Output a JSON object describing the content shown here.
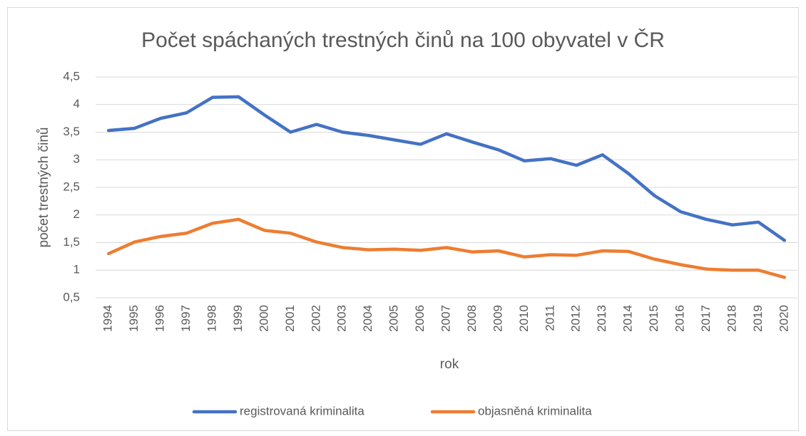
{
  "chart_data": {
    "type": "line",
    "title": "Počet spáchaných trestných činů na 100 obyvatel v ČR",
    "xlabel": "rok",
    "ylabel": "počet trestných činů",
    "categories": [
      "1994",
      "1995",
      "1996",
      "1997",
      "1998",
      "1999",
      "2000",
      "2001",
      "2002",
      "2003",
      "2004",
      "2005",
      "2006",
      "2007",
      "2008",
      "2009",
      "2010",
      "2011",
      "2012",
      "2013",
      "2014",
      "2015",
      "2016",
      "2017",
      "2018",
      "2019",
      "2020"
    ],
    "series": [
      {
        "name": "registrovaná kriminalita",
        "color": "#4472c4",
        "values": [
          3.53,
          3.57,
          3.75,
          3.85,
          4.13,
          4.14,
          3.81,
          3.5,
          3.64,
          3.5,
          3.44,
          3.36,
          3.28,
          3.47,
          3.32,
          3.18,
          2.98,
          3.02,
          2.9,
          3.09,
          2.75,
          2.35,
          2.06,
          1.92,
          1.82,
          1.87,
          1.54
        ]
      },
      {
        "name": "objasněná kriminalita",
        "color": "#ed7d31",
        "values": [
          1.3,
          1.51,
          1.61,
          1.67,
          1.85,
          1.92,
          1.72,
          1.67,
          1.51,
          1.41,
          1.37,
          1.38,
          1.36,
          1.41,
          1.33,
          1.35,
          1.24,
          1.28,
          1.27,
          1.35,
          1.34,
          1.2,
          1.1,
          1.02,
          1.0,
          1.0,
          0.87
        ]
      }
    ],
    "ylim": [
      0.5,
      4.5
    ],
    "yticks": [
      {
        "value": 0.5,
        "label": "0,5"
      },
      1,
      {
        "value": 1.5,
        "label": "1,5"
      },
      2,
      {
        "value": 2.5,
        "label": "2,5"
      },
      3,
      {
        "value": 3.5,
        "label": "3,5"
      },
      4,
      {
        "value": 4.5,
        "label": "4,5"
      }
    ],
    "grid": true,
    "legend": "bottom"
  }
}
